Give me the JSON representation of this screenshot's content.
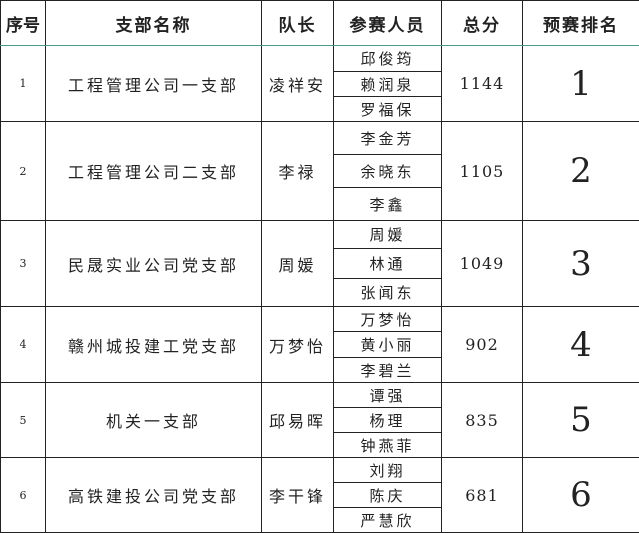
{
  "headers": {
    "seq": "序号",
    "branch": "支部名称",
    "captain": "队长",
    "members": "参赛人员",
    "score": "总分",
    "rank": "预赛排名"
  },
  "rows": [
    {
      "seq": "1",
      "branch": "工程管理公司一支部",
      "captain": "凌祥安",
      "members": [
        "邱俊筠",
        "赖润泉",
        "罗福保"
      ],
      "score": "1144",
      "rank": "1"
    },
    {
      "seq": "2",
      "branch": "工程管理公司二支部",
      "captain": "李禄",
      "members": [
        "李金芳",
        "余晓东",
        "李鑫"
      ],
      "score": "1105",
      "rank": "2"
    },
    {
      "seq": "3",
      "branch": "民晟实业公司党支部",
      "captain": "周媛",
      "members": [
        "周媛",
        "林通",
        "张闻东"
      ],
      "score": "1049",
      "rank": "3"
    },
    {
      "seq": "4",
      "branch": "赣州城投建工党支部",
      "captain": "万梦怡",
      "members": [
        "万梦怡",
        "黄小丽",
        "李碧兰"
      ],
      "score": "902",
      "rank": "4"
    },
    {
      "seq": "5",
      "branch": "机关一支部",
      "captain": "邱易晖",
      "members": [
        "谭强",
        "杨理",
        "钟燕菲"
      ],
      "score": "835",
      "rank": "5"
    },
    {
      "seq": "6",
      "branch": "高铁建投公司党支部",
      "captain": "李干锋",
      "members": [
        "刘翔",
        "陈庆",
        "严慧欣"
      ],
      "score": "681",
      "rank": "6"
    }
  ]
}
